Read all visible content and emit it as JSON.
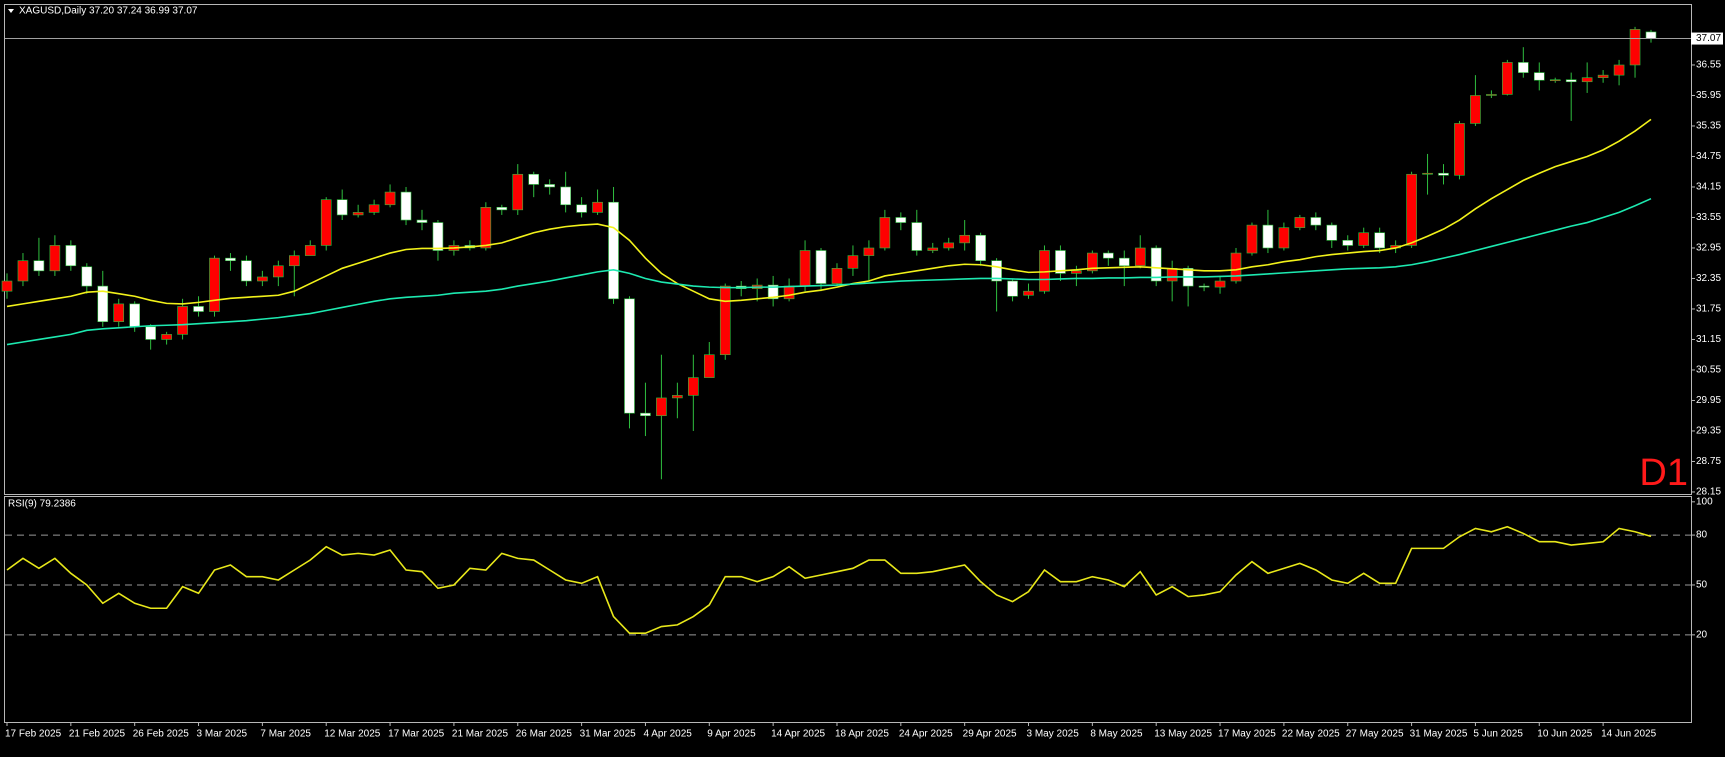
{
  "chart_data": [
    {
      "type": "candlestick",
      "title": "XAGUSD,Daily 37.20 37.24 36.99 37.07",
      "annotation": "D1",
      "up_color": "#ff0000",
      "down_color": "#ffffff",
      "wick_color": "#2fbf3f",
      "ylim": [
        28.11,
        37.73
      ],
      "yticks": [
        28.15,
        28.75,
        29.35,
        29.95,
        30.55,
        31.15,
        31.75,
        32.35,
        32.95,
        33.55,
        34.15,
        34.75,
        35.35,
        35.95,
        36.55
      ],
      "current_price": {
        "value": 37.07,
        "label": "37.07"
      },
      "categories": [
        "17 Feb 2025",
        null,
        null,
        null,
        "21 Feb 2025",
        null,
        null,
        null,
        "26 Feb 2025",
        null,
        null,
        null,
        "3 Mar 2025",
        null,
        null,
        null,
        "7 Mar 2025",
        null,
        null,
        null,
        "12 Mar 2025",
        null,
        null,
        null,
        "17 Mar 2025",
        null,
        null,
        null,
        "21 Mar 2025",
        null,
        null,
        null,
        "26 Mar 2025",
        null,
        null,
        null,
        "31 Mar 2025",
        null,
        null,
        null,
        "4 Apr 2025",
        null,
        null,
        null,
        "9 Apr 2025",
        null,
        null,
        null,
        "14 Apr 2025",
        null,
        null,
        null,
        "18 Apr 2025",
        null,
        null,
        null,
        "24 Apr 2025",
        null,
        null,
        null,
        "29 Apr 2025",
        null,
        null,
        null,
        "3 May 2025",
        null,
        null,
        null,
        "8 May 2025",
        null,
        null,
        null,
        "13 May 2025",
        null,
        null,
        null,
        "17 May 2025",
        null,
        null,
        null,
        "22 May 2025",
        null,
        null,
        null,
        "27 May 2025",
        null,
        null,
        null,
        "31 May 2025",
        null,
        null,
        null,
        "5 Jun 2025",
        null,
        null,
        null,
        "10 Jun 2025",
        null,
        null,
        null,
        "14 Jun 2025",
        null,
        null,
        null
      ],
      "open": [
        32.1,
        32.3,
        32.7,
        32.5,
        33.0,
        32.58,
        32.2,
        31.5,
        31.85,
        31.4,
        31.15,
        31.25,
        31.8,
        31.7,
        32.75,
        32.7,
        32.3,
        32.38,
        32.6,
        32.8,
        33.0,
        33.9,
        33.6,
        33.65,
        33.8,
        34.05,
        33.5,
        33.45,
        32.9,
        33.0,
        32.95,
        33.75,
        33.7,
        34.4,
        34.2,
        34.15,
        33.8,
        33.65,
        33.85,
        31.95,
        29.7,
        29.65,
        30.0,
        30.05,
        30.4,
        30.85,
        32.2,
        32.15,
        32.22,
        31.95,
        32.2,
        32.9,
        32.25,
        32.55,
        32.8,
        32.95,
        33.55,
        33.45,
        32.9,
        32.95,
        33.05,
        33.2,
        32.7,
        32.3,
        32.02,
        32.1,
        32.9,
        32.45,
        32.5,
        32.85,
        32.75,
        32.6,
        32.95,
        32.3,
        32.55,
        32.2,
        32.18,
        32.3,
        32.85,
        33.4,
        32.95,
        33.35,
        33.55,
        33.4,
        33.1,
        33.0,
        33.25,
        32.95,
        33.0,
        34.4,
        34.42,
        34.38,
        35.4,
        35.95,
        35.97,
        36.6,
        36.4,
        36.25,
        36.26,
        36.22,
        36.3,
        36.35,
        36.55,
        37.2
      ],
      "high": [
        32.45,
        32.85,
        33.15,
        33.2,
        33.1,
        32.65,
        32.5,
        31.95,
        31.9,
        31.45,
        31.3,
        31.95,
        32.0,
        32.8,
        32.85,
        32.8,
        32.5,
        32.7,
        32.9,
        33.1,
        33.95,
        34.1,
        33.8,
        33.9,
        34.2,
        34.15,
        33.7,
        33.5,
        33.1,
        33.1,
        33.85,
        33.8,
        34.6,
        34.45,
        34.3,
        34.45,
        33.95,
        34.1,
        34.15,
        32.0,
        30.3,
        30.85,
        30.3,
        30.85,
        31.1,
        32.25,
        32.3,
        32.35,
        32.4,
        32.35,
        33.1,
        32.95,
        32.65,
        33.0,
        33.1,
        33.7,
        33.65,
        33.7,
        33.05,
        33.15,
        33.5,
        33.25,
        32.75,
        32.35,
        32.25,
        33.0,
        33.0,
        32.6,
        32.9,
        32.9,
        32.9,
        33.2,
        33.0,
        32.7,
        32.6,
        32.25,
        32.4,
        32.95,
        33.45,
        33.7,
        33.45,
        33.6,
        33.65,
        33.45,
        33.2,
        33.35,
        33.35,
        33.1,
        34.45,
        34.8,
        34.6,
        35.45,
        36.35,
        36.05,
        36.65,
        36.9,
        36.6,
        36.3,
        36.4,
        36.6,
        36.45,
        36.65,
        37.3,
        37.24
      ],
      "low": [
        31.95,
        32.2,
        32.4,
        32.4,
        32.5,
        32.05,
        31.4,
        31.4,
        31.3,
        30.95,
        31.05,
        31.15,
        31.6,
        31.6,
        32.5,
        32.2,
        32.2,
        32.2,
        32.0,
        32.8,
        32.9,
        33.5,
        33.55,
        33.6,
        33.75,
        33.4,
        33.3,
        32.7,
        32.8,
        32.9,
        32.9,
        33.6,
        33.6,
        33.95,
        34.0,
        33.65,
        33.55,
        33.6,
        31.85,
        29.4,
        29.25,
        28.4,
        29.6,
        29.35,
        30.4,
        30.75,
        32.0,
        31.9,
        31.8,
        31.9,
        32.1,
        32.1,
        32.2,
        32.4,
        32.3,
        32.9,
        33.3,
        32.8,
        32.85,
        32.9,
        32.9,
        32.6,
        31.7,
        31.9,
        31.95,
        32.05,
        32.3,
        32.2,
        32.45,
        32.6,
        32.2,
        32.55,
        32.2,
        31.9,
        31.8,
        32.1,
        32.05,
        32.25,
        32.8,
        32.85,
        32.9,
        33.3,
        33.3,
        32.95,
        32.9,
        32.95,
        32.85,
        32.85,
        32.95,
        34.0,
        34.2,
        34.3,
        35.35,
        35.9,
        35.95,
        36.3,
        36.05,
        36.2,
        35.45,
        36.0,
        36.2,
        36.15,
        36.3,
        36.99
      ],
      "close": [
        32.3,
        32.7,
        32.5,
        33.0,
        32.6,
        32.2,
        31.5,
        31.85,
        31.4,
        31.15,
        31.25,
        31.8,
        31.7,
        32.75,
        32.7,
        32.3,
        32.38,
        32.6,
        32.8,
        33.0,
        33.9,
        33.6,
        33.65,
        33.8,
        34.05,
        33.5,
        33.45,
        32.9,
        33.0,
        32.95,
        33.75,
        33.7,
        34.4,
        34.2,
        34.15,
        33.8,
        33.65,
        33.85,
        31.95,
        29.7,
        29.65,
        30.0,
        30.05,
        30.4,
        30.85,
        32.2,
        32.15,
        32.22,
        31.95,
        32.2,
        32.9,
        32.25,
        32.55,
        32.8,
        32.95,
        33.55,
        33.45,
        32.9,
        32.95,
        33.05,
        33.2,
        32.7,
        32.3,
        32.0,
        32.1,
        32.9,
        32.45,
        32.5,
        32.85,
        32.75,
        32.6,
        32.95,
        32.3,
        32.55,
        32.2,
        32.18,
        32.3,
        32.85,
        33.4,
        32.95,
        33.35,
        33.55,
        33.4,
        33.1,
        33.0,
        33.25,
        32.95,
        33.0,
        34.4,
        34.42,
        34.38,
        35.4,
        35.95,
        35.97,
        36.6,
        36.4,
        36.25,
        36.26,
        36.22,
        36.3,
        36.35,
        36.55,
        37.25,
        37.07
      ],
      "overlays": [
        {
          "color": "#f2f21a",
          "values": [
            31.8,
            31.85,
            31.9,
            31.95,
            32.0,
            32.08,
            32.1,
            32.05,
            32.0,
            31.92,
            31.86,
            31.85,
            31.88,
            31.92,
            31.96,
            31.98,
            32.0,
            32.02,
            32.1,
            32.25,
            32.4,
            32.55,
            32.65,
            32.75,
            32.85,
            32.92,
            32.94,
            32.94,
            32.95,
            32.97,
            33.0,
            33.05,
            33.15,
            33.25,
            33.32,
            33.37,
            33.4,
            33.42,
            33.35,
            33.1,
            32.75,
            32.45,
            32.25,
            32.1,
            31.95,
            31.9,
            31.92,
            31.95,
            31.98,
            32.02,
            32.08,
            32.12,
            32.18,
            32.25,
            32.3,
            32.4,
            32.45,
            32.5,
            32.55,
            32.6,
            32.63,
            32.62,
            32.58,
            32.52,
            32.47,
            32.48,
            32.5,
            32.52,
            32.55,
            32.56,
            32.57,
            32.58,
            32.56,
            32.54,
            32.52,
            32.5,
            32.5,
            32.52,
            32.58,
            32.62,
            32.68,
            32.72,
            32.78,
            32.82,
            32.85,
            32.88,
            32.9,
            32.95,
            33.05,
            33.18,
            33.32,
            33.5,
            33.72,
            33.92,
            34.1,
            34.28,
            34.42,
            34.55,
            34.65,
            34.75,
            34.88,
            35.05,
            35.25,
            35.48
          ]
        },
        {
          "color": "#1de9b0",
          "values": [
            31.05,
            31.1,
            31.15,
            31.2,
            31.25,
            31.33,
            31.36,
            31.38,
            31.4,
            31.42,
            31.43,
            31.44,
            31.46,
            31.48,
            31.5,
            31.52,
            31.55,
            31.58,
            31.62,
            31.66,
            31.72,
            31.78,
            31.84,
            31.9,
            31.95,
            31.98,
            32.0,
            32.02,
            32.06,
            32.08,
            32.1,
            32.14,
            32.2,
            32.25,
            32.3,
            32.36,
            32.42,
            32.48,
            32.52,
            32.45,
            32.35,
            32.28,
            32.24,
            32.2,
            32.18,
            32.17,
            32.17,
            32.18,
            32.18,
            32.19,
            32.2,
            32.21,
            32.22,
            32.24,
            32.26,
            32.28,
            32.3,
            32.31,
            32.32,
            32.33,
            32.34,
            32.35,
            32.35,
            32.34,
            32.33,
            32.33,
            32.34,
            32.35,
            32.35,
            32.36,
            32.36,
            32.37,
            32.37,
            32.38,
            32.38,
            32.38,
            32.39,
            32.4,
            32.42,
            32.44,
            32.46,
            32.48,
            32.5,
            32.52,
            32.54,
            32.55,
            32.56,
            32.58,
            32.62,
            32.68,
            32.75,
            32.82,
            32.9,
            32.98,
            33.06,
            33.14,
            33.22,
            33.3,
            33.38,
            33.45,
            33.55,
            33.65,
            33.78,
            33.92
          ]
        }
      ]
    },
    {
      "type": "line",
      "title": "RSI(9) 79.2386",
      "color": "#e8e81a",
      "ylim": [
        -32.4,
        102.9
      ],
      "yticks": [
        100,
        80,
        50,
        20
      ],
      "levels": [
        80,
        50,
        20
      ],
      "values": [
        59,
        66,
        60,
        66,
        57,
        50,
        39,
        45,
        39,
        36,
        36,
        49,
        45,
        59,
        62,
        55,
        55,
        53,
        59,
        65,
        73,
        68,
        69,
        68,
        71,
        59,
        58,
        48,
        50,
        60,
        59,
        69,
        66,
        65,
        59,
        53,
        51,
        55,
        31,
        21,
        21,
        25,
        26,
        31,
        38,
        55,
        55,
        52,
        55,
        61,
        54,
        56,
        58,
        60,
        65,
        65,
        57,
        57,
        58,
        60,
        62,
        52,
        44,
        40,
        46,
        59,
        52,
        52,
        55,
        53,
        49,
        58,
        44,
        49,
        43,
        44,
        46,
        56,
        64,
        57,
        60,
        63,
        59,
        53,
        51,
        57,
        51,
        51,
        72,
        72,
        72,
        79,
        84,
        82,
        85,
        81,
        76,
        76,
        74,
        75,
        76,
        84,
        82,
        79.2386
      ]
    }
  ]
}
